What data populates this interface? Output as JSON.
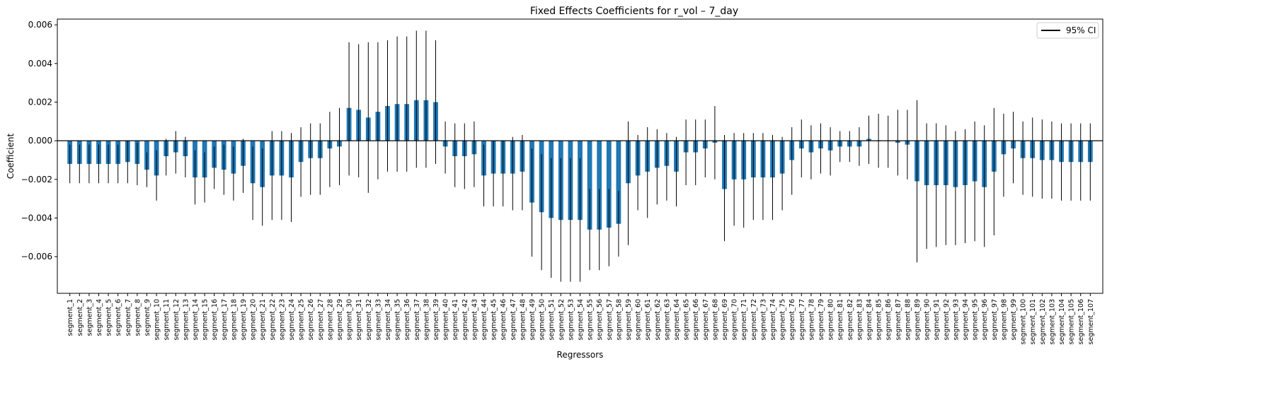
{
  "chart_data": {
    "type": "bar",
    "title": "Fixed Effects Coefficients for r_vol – 7_day",
    "xlabel": "Regressors",
    "ylabel": "Coefficient",
    "ylim": [
      -0.0079,
      0.0063
    ],
    "yticks": [
      -0.006,
      -0.004,
      -0.002,
      0.0,
      0.002,
      0.004,
      0.006
    ],
    "ytick_labels": [
      "−0.006",
      "−0.004",
      "−0.002",
      "0.000",
      "0.002",
      "0.004",
      "0.006"
    ],
    "legend": {
      "label": "95% CI",
      "placement": "top-right"
    },
    "bar_color": "#1f77b4",
    "grid": false,
    "categories": [
      "segment_1",
      "segment_2",
      "segment_3",
      "segment_4",
      "segment_5",
      "segment_6",
      "segment_7",
      "segment_8",
      "segment_9",
      "segment_10",
      "segment_11",
      "segment_12",
      "segment_13",
      "segment_14",
      "segment_15",
      "segment_16",
      "segment_17",
      "segment_18",
      "segment_19",
      "segment_20",
      "segment_21",
      "segment_22",
      "segment_23",
      "segment_24",
      "segment_25",
      "segment_26",
      "segment_27",
      "segment_28",
      "segment_29",
      "segment_30",
      "segment_31",
      "segment_32",
      "segment_33",
      "segment_34",
      "segment_35",
      "segment_36",
      "segment_37",
      "segment_38",
      "segment_39",
      "segment_40",
      "segment_41",
      "segment_42",
      "segment_43",
      "segment_44",
      "segment_45",
      "segment_46",
      "segment_47",
      "segment_48",
      "segment_49",
      "segment_50",
      "segment_51",
      "segment_52",
      "segment_53",
      "segment_54",
      "segment_55",
      "segment_56",
      "segment_57",
      "segment_58",
      "segment_59",
      "segment_60",
      "segment_61",
      "segment_62",
      "segment_63",
      "segment_64",
      "segment_65",
      "segment_66",
      "segment_67",
      "segment_68",
      "segment_69",
      "segment_70",
      "segment_71",
      "segment_72",
      "segment_73",
      "segment_74",
      "segment_75",
      "segment_76",
      "segment_77",
      "segment_78",
      "segment_79",
      "segment_80",
      "segment_81",
      "segment_82",
      "segment_83",
      "segment_84",
      "segment_85",
      "segment_86",
      "segment_87",
      "segment_88",
      "segment_89",
      "segment_90",
      "segment_91",
      "segment_92",
      "segment_93",
      "segment_94",
      "segment_95",
      "segment_96",
      "segment_97",
      "segment_98",
      "segment_99",
      "segment_100",
      "segment_101",
      "segment_102",
      "segment_103",
      "segment_104",
      "segment_105",
      "segment_106",
      "segment_107"
    ],
    "values": [
      -0.0012,
      -0.0012,
      -0.0012,
      -0.0012,
      -0.0012,
      -0.0012,
      -0.0011,
      -0.0012,
      -0.0015,
      -0.0018,
      -0.0008,
      -0.0006,
      -0.0008,
      -0.0019,
      -0.0019,
      -0.0014,
      -0.0015,
      -0.0017,
      -0.0013,
      -0.0022,
      -0.0024,
      -0.0018,
      -0.0018,
      -0.0019,
      -0.0011,
      -0.0009,
      -0.0009,
      -0.0004,
      -0.0003,
      0.0017,
      0.0016,
      0.0012,
      0.0015,
      0.0018,
      0.0019,
      0.0019,
      0.0021,
      0.0021,
      0.002,
      -0.0003,
      -0.0008,
      -0.0008,
      -0.0007,
      -0.0018,
      -0.0017,
      -0.0017,
      -0.0017,
      -0.0016,
      -0.0032,
      -0.0037,
      -0.004,
      -0.0041,
      -0.0041,
      -0.0041,
      -0.0046,
      -0.0046,
      -0.0045,
      -0.0043,
      -0.0022,
      -0.0018,
      -0.0016,
      -0.0014,
      -0.0013,
      -0.0016,
      -0.0006,
      -0.0006,
      -0.0004,
      -0.0001,
      -0.0025,
      -0.002,
      -0.002,
      -0.0019,
      -0.0019,
      -0.0019,
      -0.0017,
      -0.001,
      -0.0004,
      -0.0006,
      -0.0004,
      -0.0005,
      -0.0003,
      -0.0003,
      -0.0003,
      0.0001,
      0.0,
      0.0,
      -0.0001,
      -0.0002,
      -0.0021,
      -0.0023,
      -0.0023,
      -0.0023,
      -0.0024,
      -0.0023,
      -0.0021,
      -0.0024,
      -0.0016,
      -0.0007,
      -0.0004,
      -0.0009,
      -0.0009,
      -0.001,
      -0.001,
      -0.0011,
      -0.0011,
      -0.0011,
      -0.0011
    ],
    "ci_lower": [
      -0.0022,
      -0.0022,
      -0.0022,
      -0.0022,
      -0.0022,
      -0.0022,
      -0.0022,
      -0.0023,
      -0.0024,
      -0.0031,
      -0.0018,
      -0.0017,
      -0.0019,
      -0.0033,
      -0.0032,
      -0.0025,
      -0.0028,
      -0.0031,
      -0.0027,
      -0.0041,
      -0.0044,
      -0.0041,
      -0.0041,
      -0.0042,
      -0.0029,
      -0.0028,
      -0.0028,
      -0.0024,
      -0.0023,
      -0.0018,
      -0.0019,
      -0.0027,
      -0.002,
      -0.0016,
      -0.0016,
      -0.0016,
      -0.0014,
      -0.0014,
      -0.0012,
      -0.0017,
      -0.0024,
      -0.0025,
      -0.0024,
      -0.0034,
      -0.0034,
      -0.0034,
      -0.0036,
      -0.0036,
      -0.006,
      -0.0067,
      -0.0071,
      -0.0073,
      -0.0073,
      -0.0073,
      -0.0067,
      -0.0067,
      -0.0065,
      -0.006,
      -0.0054,
      -0.0036,
      -0.004,
      -0.0033,
      -0.0031,
      -0.0034,
      -0.0023,
      -0.0023,
      -0.0019,
      -0.002,
      -0.0052,
      -0.0044,
      -0.0045,
      -0.0041,
      -0.0041,
      -0.0041,
      -0.0036,
      -0.0028,
      -0.0019,
      -0.002,
      -0.0017,
      -0.0018,
      -0.0011,
      -0.0011,
      -0.0013,
      -0.0012,
      -0.0014,
      -0.0014,
      -0.0018,
      -0.002,
      -0.0063,
      -0.0056,
      -0.0055,
      -0.0054,
      -0.0054,
      -0.0053,
      -0.0052,
      -0.0055,
      -0.0049,
      -0.0029,
      -0.0022,
      -0.0028,
      -0.0029,
      -0.003,
      -0.003,
      -0.0031,
      -0.0031,
      -0.0031,
      -0.0031
    ],
    "ci_upper": [
      -0.0002,
      -0.0002,
      -0.0002,
      -0.0002,
      -0.0002,
      -0.0002,
      0.0,
      -0.0001,
      -0.0006,
      -0.0005,
      0.0001,
      0.0005,
      0.0002,
      -0.0005,
      -0.0006,
      -0.0003,
      -0.0002,
      -0.0003,
      0.0001,
      -0.0003,
      -0.0004,
      0.0005,
      0.0005,
      0.0004,
      0.0007,
      0.0009,
      0.0009,
      0.0015,
      0.0017,
      0.0051,
      0.005,
      0.0051,
      0.0051,
      0.0052,
      0.0054,
      0.0054,
      0.0057,
      0.0057,
      0.0052,
      0.001,
      0.0009,
      0.0009,
      0.001,
      -0.0002,
      0.0,
      0.0,
      0.0002,
      0.0003,
      -0.0004,
      -0.0007,
      -0.0009,
      -0.0009,
      -0.0009,
      -0.0009,
      -0.0025,
      -0.0025,
      -0.0025,
      -0.0026,
      0.001,
      0.0003,
      0.0007,
      0.0006,
      0.0004,
      0.0002,
      0.0011,
      0.0011,
      0.0011,
      0.0018,
      0.0003,
      0.0004,
      0.0004,
      0.0004,
      0.0004,
      0.0003,
      0.0002,
      0.0007,
      0.0011,
      0.0008,
      0.0009,
      0.0007,
      0.0005,
      0.0005,
      0.0007,
      0.0013,
      0.0014,
      0.0013,
      0.0016,
      0.0016,
      0.0021,
      0.0009,
      0.0009,
      0.0008,
      0.0005,
      0.0006,
      0.001,
      0.0008,
      0.0017,
      0.0014,
      0.0015,
      0.001,
      0.0012,
      0.0011,
      0.001,
      0.0009,
      0.0009,
      0.0009,
      0.0009
    ]
  }
}
